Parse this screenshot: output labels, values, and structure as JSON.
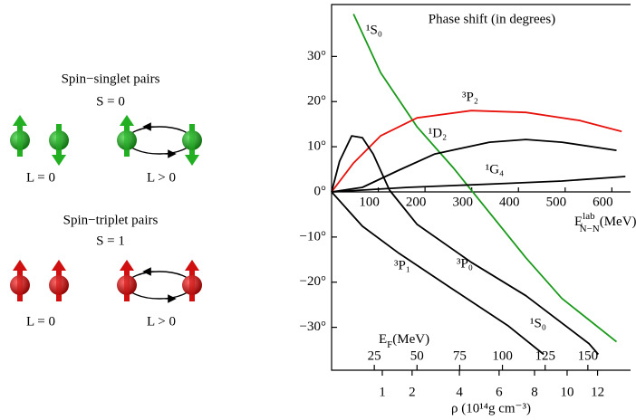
{
  "diagram": {
    "singlet": {
      "title": "Spin−singlet pairs",
      "spin": "S = 0",
      "l0": "L = 0",
      "l1": "L > 0"
    },
    "triplet": {
      "title": "Spin−triplet pairs",
      "spin": "S = 1",
      "l0": "L = 0",
      "l1": "L > 0"
    }
  },
  "chart_data": {
    "type": "line",
    "title": "Phase shift (in degrees)",
    "xlim": [
      0,
      640
    ],
    "xticks": [
      100,
      200,
      300,
      400,
      500,
      600
    ],
    "xlabel": {
      "main": "E",
      "sup": "lab",
      "sub": "N−N",
      "unit": "(MeV)"
    },
    "ylim": [
      -39.5,
      41.5
    ],
    "yticks": [
      {
        "value": -30,
        "label": "−30°"
      },
      {
        "value": -20,
        "label": "−20°"
      },
      {
        "value": -10,
        "label": "−10°"
      },
      {
        "value": 0,
        "label": "0°"
      },
      {
        "value": 10,
        "label": "10°"
      },
      {
        "value": 20,
        "label": "20°"
      },
      {
        "value": 30,
        "label": "30°"
      }
    ],
    "x2": {
      "label": {
        "main": "E",
        "sub": "F",
        "unit": "(MeV)"
      },
      "xlim": [
        0,
        175
      ],
      "xticks": [
        25,
        50,
        75,
        100,
        125,
        150
      ]
    },
    "x3": {
      "label": "ρ (10¹⁴g cm⁻³)",
      "xlim": [
        0,
        14.3
      ],
      "xticks": [
        1,
        2,
        4,
        6,
        8,
        10,
        12
      ],
      "scale": "power",
      "exponent": 0.667
    },
    "series": [
      {
        "name": "¹S₀",
        "color": "#1a9a1a",
        "x": [
          47,
          105,
          183,
          260,
          338,
          416,
          493,
          610
        ],
        "values": [
          39.4,
          26.4,
          14.4,
          5.4,
          -4.6,
          -14.6,
          -23.6,
          -33.2
        ]
      },
      {
        "name": "³P₂",
        "color": "#e8120c",
        "x": [
          0,
          47,
          105,
          183,
          299,
          416,
          532,
          621
        ],
        "values": [
          0,
          6.4,
          12.4,
          16.4,
          18,
          17.6,
          15.8,
          13.4
        ]
      },
      {
        "name": "¹D₂",
        "color": "#000000",
        "x": [
          0,
          66,
          144,
          221,
          338,
          416,
          493,
          610
        ],
        "values": [
          0,
          1,
          4.8,
          8.4,
          11,
          11.6,
          11,
          9.2
        ]
      },
      {
        "name": "¹G₄",
        "color": "#000000",
        "x": [
          0,
          163,
          357,
          493,
          629
        ],
        "values": [
          0,
          1,
          1.8,
          2.4,
          3.4
        ]
      },
      {
        "name": "³P₀",
        "color": "#000000",
        "x": [
          0,
          17,
          43,
          66,
          89,
          124,
          183,
          299,
          416,
          551,
          571
        ],
        "values": [
          0,
          6.8,
          12.4,
          12,
          8.4,
          0.4,
          -7.2,
          -15.6,
          -23,
          -33.6,
          -36
        ]
      },
      {
        "name": "³P₁",
        "color": "#000000",
        "x": [
          0,
          66,
          144,
          260,
          377,
          454
        ],
        "values": [
          0,
          -7.6,
          -13.6,
          -21.6,
          -29.6,
          -36
        ]
      }
    ]
  }
}
